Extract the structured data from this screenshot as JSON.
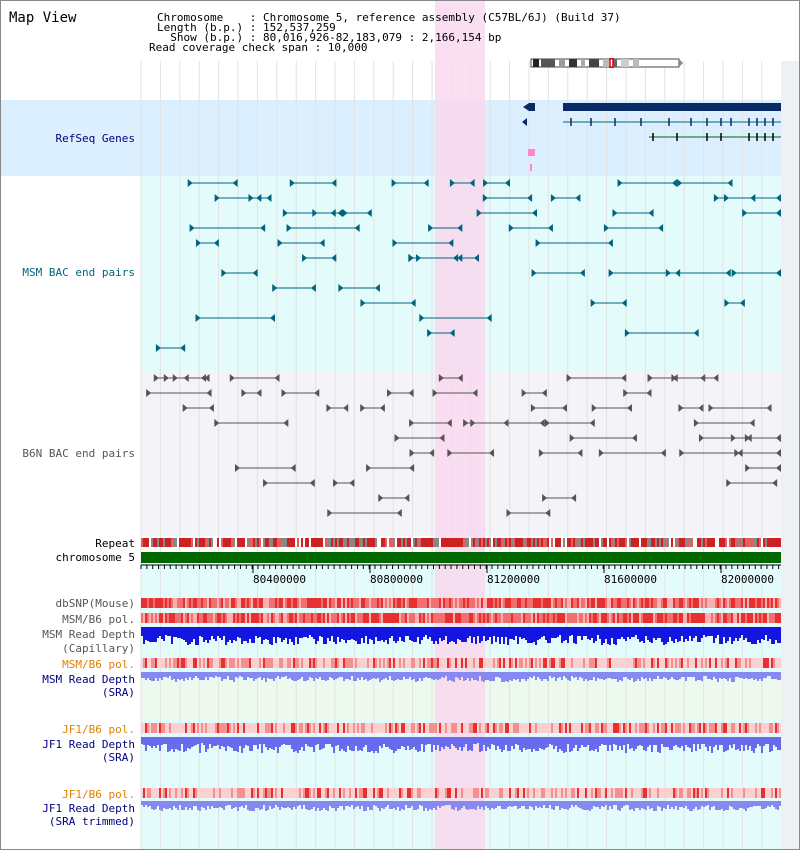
{
  "view": {
    "title": "Map View",
    "header": {
      "chromosome": "Chromosome    : Chromosome 5, reference assembly (C57BL/6J) (Build 37)",
      "length": "Length (b.p.) : 152,537,259",
      "show": "  Show (b.p.) : 80,016,926-82,183,079 : 2,166,154 bp",
      "coverage": "Read coverage check span : 10,000"
    }
  },
  "tracks": {
    "refseq": "RefSeq Genes",
    "msm_bac": "MSM BAC end pairs",
    "b6n_bac": "B6N BAC end pairs",
    "repeat": "Repeat",
    "chromosome": "chromosome 5",
    "dbsnp": "dbSNP(Mouse)",
    "msm_b6_pol_1": "MSM/B6 pol.",
    "msm_read_depth_cap_1": "MSM Read Depth",
    "msm_read_depth_cap_2": "(Capillary)",
    "msm_b6_pol_2": "MSM/B6 pol.",
    "msm_read_depth_sra_1": "MSM Read Depth",
    "msm_read_depth_sra_2": "(SRA)",
    "jf1_b6_pol_1": "JF1/B6 pol.",
    "jf1_read_depth_sra_1": "JF1 Read Depth",
    "jf1_read_depth_sra_2": "(SRA)",
    "jf1_b6_pol_2": "JF1/B6 pol.",
    "jf1_read_depth_trim_1": "JF1 Read Depth",
    "jf1_read_depth_trim_2": "(SRA trimmed)"
  },
  "axis": {
    "ticks": [
      "80400000",
      "80800000",
      "81200000",
      "81600000",
      "82000000"
    ]
  },
  "colors": {
    "highlight": "#f9d8ef",
    "refseq_bg": "#dcefff",
    "bac_bg": "#e4fbfb",
    "gene_blue": "#0a2a66",
    "msm_bac": "#00647f",
    "b6n_bac": "#555555",
    "chrom_green": "#006600",
    "depth_blue": "#1515e0",
    "depth_light": "#8888f0",
    "orange_label": "#e08000",
    "navy_label": "#000080",
    "teal_label": "#006680"
  }
}
